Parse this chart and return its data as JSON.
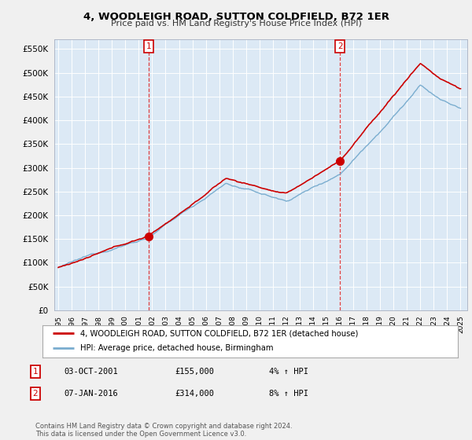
{
  "title": "4, WOODLEIGH ROAD, SUTTON COLDFIELD, B72 1ER",
  "subtitle": "Price paid vs. HM Land Registry's House Price Index (HPI)",
  "legend_line1": "4, WOODLEIGH ROAD, SUTTON COLDFIELD, B72 1ER (detached house)",
  "legend_line2": "HPI: Average price, detached house, Birmingham",
  "transactions": [
    {
      "num": "1",
      "date": "03-OCT-2001",
      "price": "£155,000",
      "change": "4% ↑ HPI"
    },
    {
      "num": "2",
      "date": "07-JAN-2016",
      "price": "£314,000",
      "change": "8% ↑ HPI"
    }
  ],
  "footer": "Contains HM Land Registry data © Crown copyright and database right 2024.\nThis data is licensed under the Open Government Licence v3.0.",
  "sale1_year": 2001.75,
  "sale1_price": 155000,
  "sale2_year": 2016.02,
  "sale2_price": 314000,
  "vline1_year": 2001.75,
  "vline2_year": 2016.02,
  "fig_bg": "#f0f0f0",
  "plot_bg": "#dce9f5",
  "red_line_color": "#cc0000",
  "blue_line_color": "#7aadcf",
  "grid_color": "#ffffff",
  "ylim_min": 0,
  "ylim_max": 570000,
  "xlim_min": 1994.7,
  "xlim_max": 2025.5
}
